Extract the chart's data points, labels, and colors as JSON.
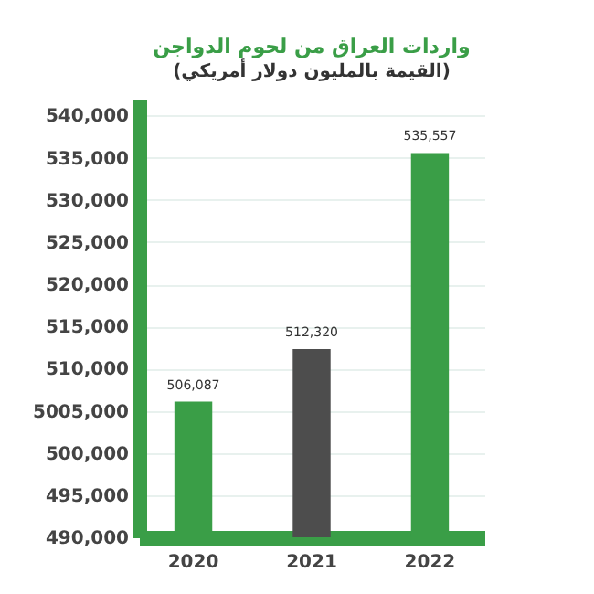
{
  "chart_data": {
    "type": "bar",
    "title": "واردات العراق من لحوم الدواجن",
    "subtitle": "(القيمة بالمليون دولار أمريكي)",
    "categories": [
      "2020",
      "2021",
      "2022"
    ],
    "values": [
      506087,
      512320,
      535557
    ],
    "value_labels": [
      "506,087",
      "512,320",
      "535,557"
    ],
    "colors": [
      "#3a9e47",
      "#4d4d4d",
      "#3a9e47"
    ],
    "ylim": [
      490000,
      542000
    ],
    "yticks": [
      {
        "value": 490000,
        "label": "490,000"
      },
      {
        "value": 495000,
        "label": "495,000"
      },
      {
        "value": 500000,
        "label": "500,000"
      },
      {
        "value": 505000,
        "label": "5005,000"
      },
      {
        "value": 510000,
        "label": "510,000"
      },
      {
        "value": 515000,
        "label": "515,000"
      },
      {
        "value": 520000,
        "label": "520,000"
      },
      {
        "value": 525000,
        "label": "525,000"
      },
      {
        "value": 530000,
        "label": "530,000"
      },
      {
        "value": 535000,
        "label": "535,000"
      },
      {
        "value": 540000,
        "label": "540,000"
      }
    ],
    "grid": "y"
  }
}
